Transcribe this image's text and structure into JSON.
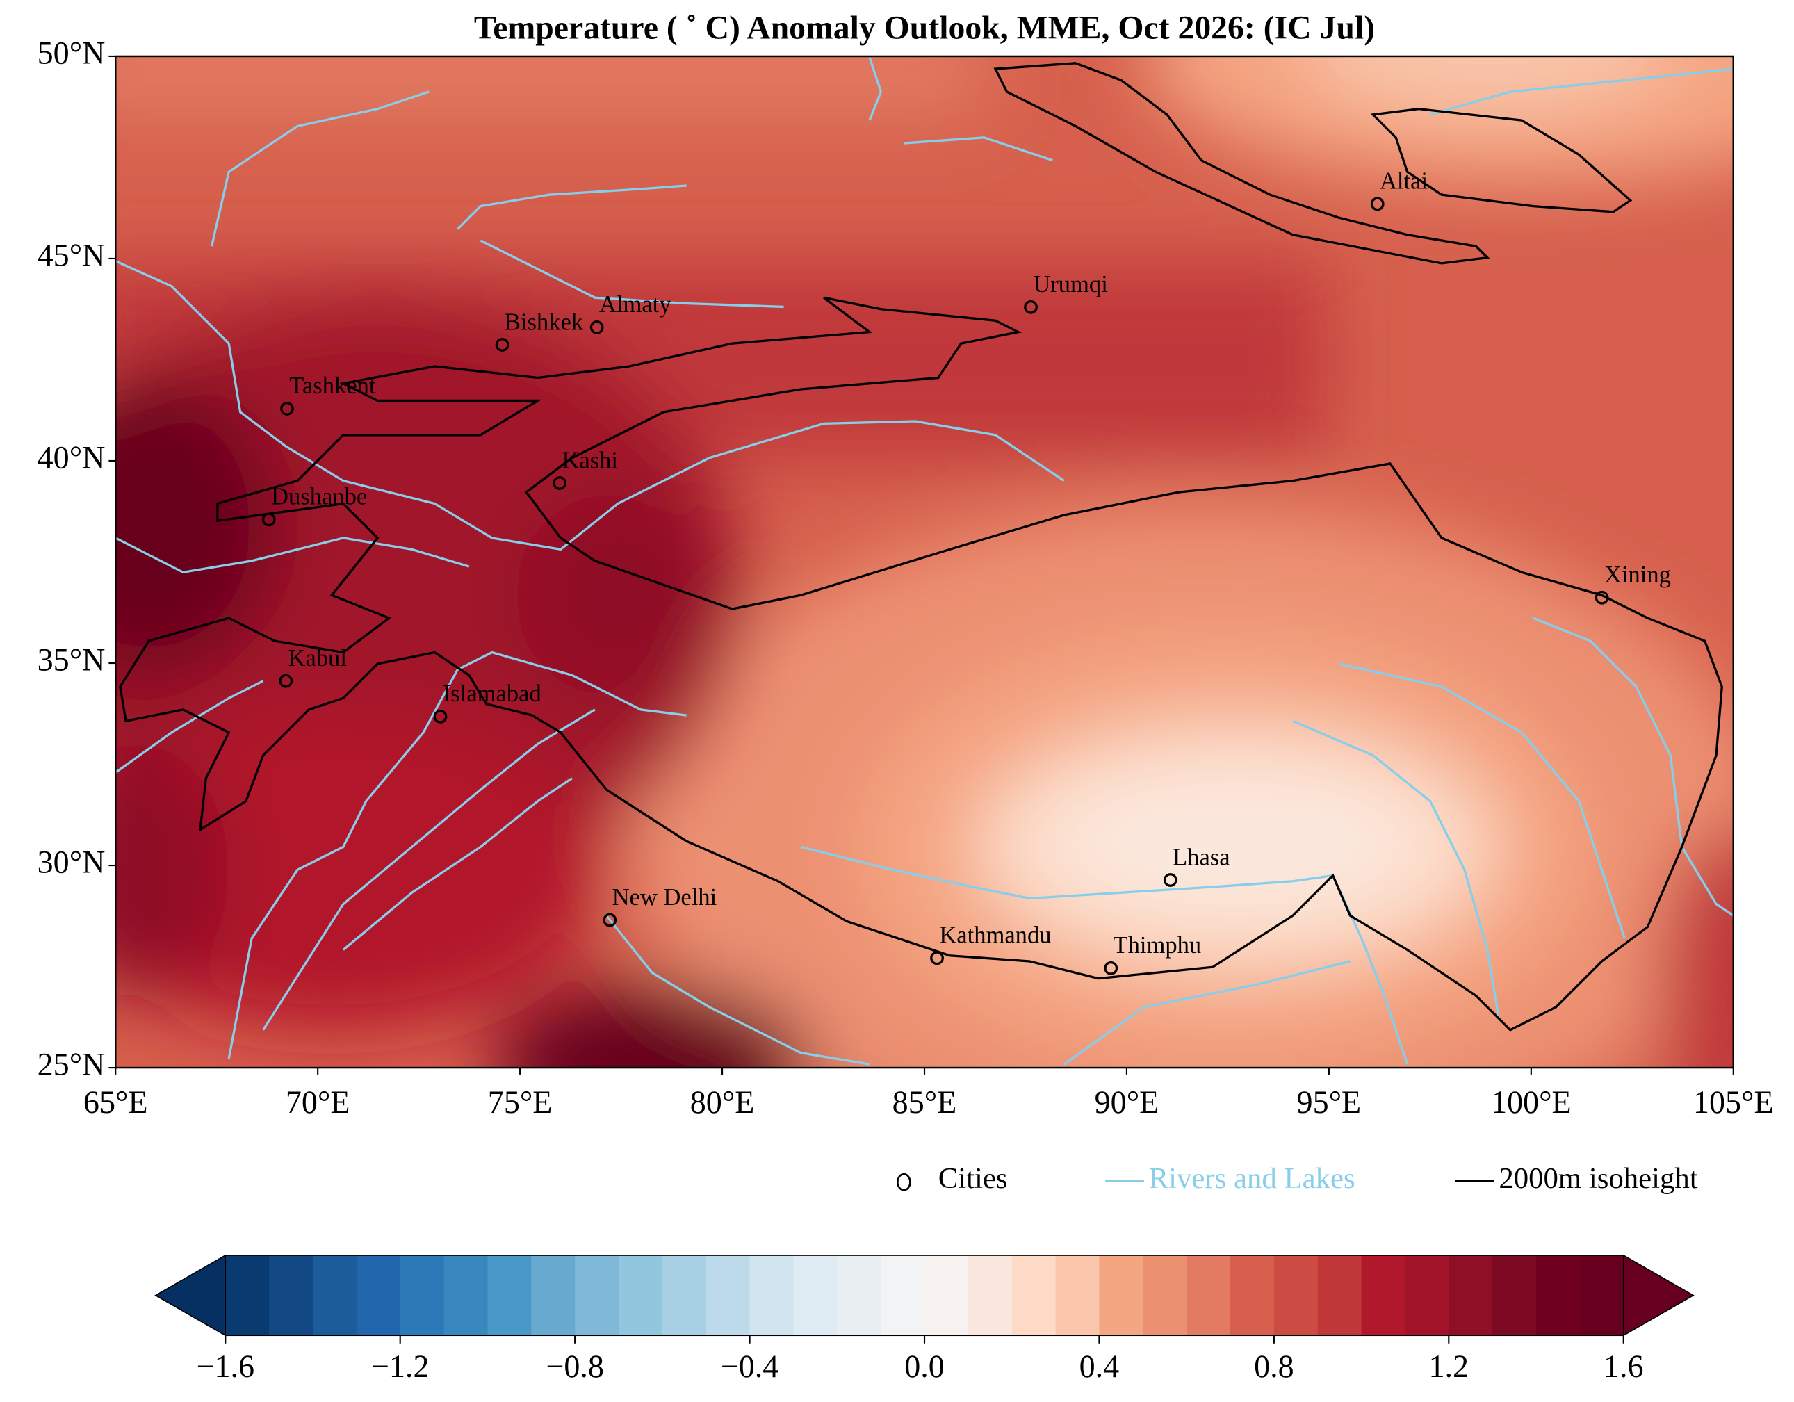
{
  "title": "Temperature ( ˚ C) Anomaly Outlook, MME, Oct  2026:  (IC Jul)",
  "map": {
    "xlim": [
      65,
      105
    ],
    "ylim": [
      25,
      50
    ],
    "xticks": [
      {
        "value": 65,
        "label": "65°E"
      },
      {
        "value": 70,
        "label": "70°E"
      },
      {
        "value": 75,
        "label": "75°E"
      },
      {
        "value": 80,
        "label": "80°E"
      },
      {
        "value": 85,
        "label": "85°E"
      },
      {
        "value": 90,
        "label": "90°E"
      },
      {
        "value": 95,
        "label": "95°E"
      },
      {
        "value": 100,
        "label": "100°E"
      },
      {
        "value": 105,
        "label": "105°E"
      }
    ],
    "yticks": [
      {
        "value": 25,
        "label": "25°N"
      },
      {
        "value": 30,
        "label": "30°N"
      },
      {
        "value": 35,
        "label": "35°N"
      },
      {
        "value": 40,
        "label": "40°N"
      },
      {
        "value": 45,
        "label": "45°N"
      },
      {
        "value": 50,
        "label": "50°N"
      }
    ]
  },
  "cities": [
    {
      "name": "Altai",
      "lon": 96.2,
      "lat": 46.35
    },
    {
      "name": "Urumqi",
      "lon": 87.63,
      "lat": 43.8
    },
    {
      "name": "Almaty",
      "lon": 76.9,
      "lat": 43.3
    },
    {
      "name": "Bishkek",
      "lon": 74.56,
      "lat": 42.87
    },
    {
      "name": "Tashkent",
      "lon": 69.24,
      "lat": 41.29
    },
    {
      "name": "Kashi",
      "lon": 75.98,
      "lat": 39.45
    },
    {
      "name": "Dushanbe",
      "lon": 68.79,
      "lat": 38.55
    },
    {
      "name": "Xining",
      "lon": 101.75,
      "lat": 36.62
    },
    {
      "name": "Kabul",
      "lon": 69.21,
      "lat": 34.56
    },
    {
      "name": "Islamabad",
      "lon": 73.03,
      "lat": 33.68
    },
    {
      "name": "Lhasa",
      "lon": 91.08,
      "lat": 29.64
    },
    {
      "name": "New Delhi",
      "lon": 77.22,
      "lat": 28.65
    },
    {
      "name": "Kathmandu",
      "lon": 85.31,
      "lat": 27.71
    },
    {
      "name": "Thimphu",
      "lon": 89.61,
      "lat": 27.46
    }
  ],
  "legend": {
    "items": [
      "Cities",
      "Rivers and Lakes",
      "2000m isoheight"
    ],
    "river_color": "#87ceeb",
    "isoheight_color": "#000000"
  },
  "colorbar": {
    "lim": [
      -1.6,
      1.6
    ],
    "ticks": [
      {
        "value": -1.6,
        "label": "−1.6"
      },
      {
        "value": -1.2,
        "label": "−1.2"
      },
      {
        "value": -0.8,
        "label": "−0.8"
      },
      {
        "value": -0.4,
        "label": "−0.4"
      },
      {
        "value": 0.0,
        "label": "0.0"
      },
      0.4,
      0.8,
      1.2,
      1.6
    ],
    "under_color": "#053061",
    "over_color": "#67001f",
    "colors": [
      "#0a3b70",
      "#124984",
      "#1c5c9a",
      "#2166ac",
      "#2d78b6",
      "#3a87bd",
      "#4a98c7",
      "#67a9cf",
      "#80b9d8",
      "#92c5de",
      "#a7d0e4",
      "#bcdaea",
      "#d1e5f0",
      "#dfebf2",
      "#e8eef2",
      "#f1f3f4",
      "#f7f2ef",
      "#fae8de",
      "#fddbc7",
      "#f9c6ab",
      "#f4a582",
      "#ec9072",
      "#e27b62",
      "#d6604d",
      "#cc4c43",
      "#c0383a",
      "#b2182b",
      "#a11429",
      "#8f0f26",
      "#7d0a23",
      "#700020",
      "#67001f"
    ]
  }
}
